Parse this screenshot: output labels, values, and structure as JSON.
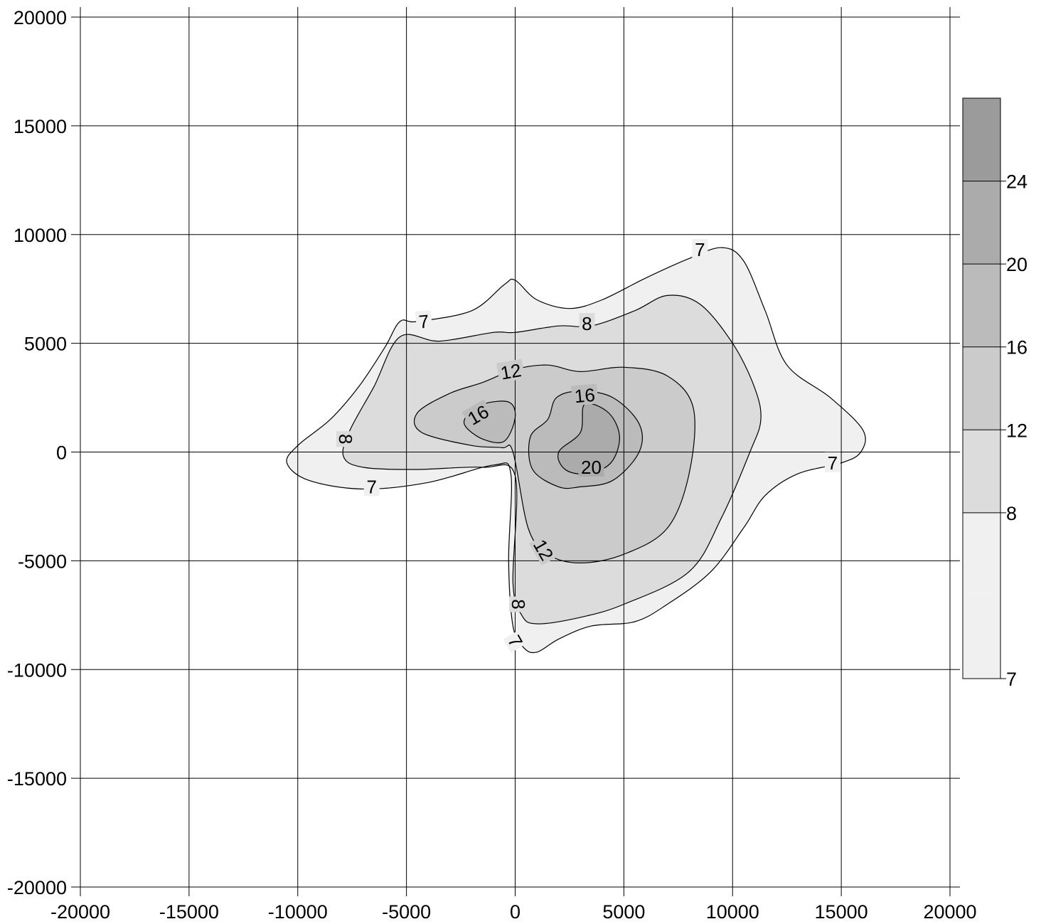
{
  "chart_data": {
    "type": "contour",
    "title": "",
    "xlabel": "",
    "ylabel": "",
    "xlim": [
      -20000,
      20000
    ],
    "ylim": [
      -20000,
      20000
    ],
    "grid": true,
    "legend": "right",
    "x_ticks": [
      "-20000",
      "-15000",
      "-10000",
      "-5000",
      "0",
      "5000",
      "10000",
      "15000",
      "20000"
    ],
    "y_ticks": [
      "20000",
      "15000",
      "10000",
      "5000",
      "0",
      "-5000",
      "-10000",
      "-15000",
      "-20000"
    ],
    "levels": [
      7,
      8,
      12,
      16,
      20,
      24
    ],
    "colorbar": {
      "labels": [
        "24",
        "20",
        "16",
        "12",
        "8",
        "7"
      ],
      "fills": [
        "#9b9b9b",
        "#ababab",
        "#bbbbbb",
        "#cbcbcb",
        "#dcdcdc",
        "#f0f0f0",
        "#f0f0f0"
      ]
    },
    "contours": [
      {
        "level": 7,
        "fill": "#f0f0f0",
        "points": [
          [
            -4500,
            6000
          ],
          [
            -2000,
            6500
          ],
          [
            -500,
            7700
          ],
          [
            0,
            7900
          ],
          [
            1000,
            7000
          ],
          [
            2500,
            6600
          ],
          [
            4000,
            7000
          ],
          [
            6000,
            8000
          ],
          [
            8000,
            8900
          ],
          [
            9500,
            9400
          ],
          [
            10500,
            8800
          ],
          [
            11500,
            6500
          ],
          [
            12500,
            4000
          ],
          [
            14500,
            2500
          ],
          [
            16000,
            1000
          ],
          [
            15900,
            0
          ],
          [
            15000,
            -500
          ],
          [
            13000,
            -1000
          ],
          [
            11500,
            -2000
          ],
          [
            10500,
            -3500
          ],
          [
            9000,
            -5500
          ],
          [
            7000,
            -7000
          ],
          [
            5500,
            -7800
          ],
          [
            3500,
            -8000
          ],
          [
            2000,
            -8600
          ],
          [
            1000,
            -9200
          ],
          [
            400,
            -9000
          ],
          [
            -100,
            -8000
          ],
          [
            -300,
            -5000
          ],
          [
            -200,
            -1000
          ],
          [
            -1000,
            -600
          ],
          [
            -4000,
            -1400
          ],
          [
            -7000,
            -1700
          ],
          [
            -9500,
            -1300
          ],
          [
            -10500,
            -500
          ],
          [
            -10000,
            300
          ],
          [
            -8500,
            1500
          ],
          [
            -7200,
            3000
          ],
          [
            -6000,
            4800
          ],
          [
            -5300,
            6000
          ]
        ],
        "labels": [
          {
            "text": "7",
            "x": -4200,
            "y": 6000,
            "rot": -5
          },
          {
            "text": "7",
            "x": 8500,
            "y": 9300,
            "rot": 0
          },
          {
            "text": "7",
            "x": 14600,
            "y": -500,
            "rot": 0
          },
          {
            "text": "7",
            "x": -6600,
            "y": -1600,
            "rot": 0
          },
          {
            "text": "7",
            "x": 0,
            "y": -8700,
            "rot": 60
          }
        ]
      },
      {
        "level": 8,
        "fill": "#dcdcdc",
        "points": [
          [
            -5300,
            5300
          ],
          [
            -3500,
            5100
          ],
          [
            -1000,
            5500
          ],
          [
            0,
            5500
          ],
          [
            2000,
            5800
          ],
          [
            3500,
            5800
          ],
          [
            5500,
            6500
          ],
          [
            7000,
            7200
          ],
          [
            8500,
            6800
          ],
          [
            10000,
            5000
          ],
          [
            11000,
            3000
          ],
          [
            11300,
            1500
          ],
          [
            10800,
            0
          ],
          [
            9500,
            -3000
          ],
          [
            8000,
            -5500
          ],
          [
            5000,
            -7000
          ],
          [
            3000,
            -7600
          ],
          [
            1000,
            -7900
          ],
          [
            300,
            -7500
          ],
          [
            -100,
            -6000
          ],
          [
            0,
            -1100
          ],
          [
            -1500,
            -700
          ],
          [
            -4500,
            -800
          ],
          [
            -7000,
            -700
          ],
          [
            -7900,
            -200
          ],
          [
            -7600,
            1000
          ],
          [
            -6500,
            3000
          ]
        ],
        "labels": [
          {
            "text": "8",
            "x": 3300,
            "y": 5900,
            "rot": 0
          },
          {
            "text": "8",
            "x": -7800,
            "y": 600,
            "rot": 90
          },
          {
            "text": "8",
            "x": 150,
            "y": -7000,
            "rot": 90
          }
        ]
      },
      {
        "level": 12,
        "fill": "#cbcbcb",
        "points": [
          [
            -4500,
            1800
          ],
          [
            -3000,
            2700
          ],
          [
            -1500,
            3200
          ],
          [
            0,
            3800
          ],
          [
            1500,
            4000
          ],
          [
            3000,
            3700
          ],
          [
            5000,
            3900
          ],
          [
            7000,
            3500
          ],
          [
            8200,
            2000
          ],
          [
            8000,
            -1000
          ],
          [
            7000,
            -3500
          ],
          [
            5000,
            -4700
          ],
          [
            3000,
            -5100
          ],
          [
            1500,
            -4700
          ],
          [
            600,
            -3500
          ],
          [
            -100,
            0
          ],
          [
            -600,
            200
          ],
          [
            -2000,
            300
          ],
          [
            -4300,
            900
          ]
        ],
        "labels": [
          {
            "text": "12",
            "x": -200,
            "y": 3700,
            "rot": -10
          },
          {
            "text": "12",
            "x": 1300,
            "y": -4500,
            "rot": 60
          }
        ]
      },
      {
        "level": 16,
        "fill": "#bbbbbb",
        "points": [
          [
            1900,
            2500
          ],
          [
            3000,
            2800
          ],
          [
            4500,
            2500
          ],
          [
            5700,
            1300
          ],
          [
            5700,
            0
          ],
          [
            4500,
            -1300
          ],
          [
            3000,
            -1600
          ],
          [
            2000,
            -1600
          ],
          [
            800,
            -800
          ],
          [
            700,
            700
          ],
          [
            1500,
            1500
          ]
        ],
        "labels": [
          {
            "text": "16",
            "x": 3200,
            "y": 2600,
            "rot": -5
          }
        ]
      },
      {
        "level": 16,
        "fill": "#bbbbbb",
        "points": [
          [
            -2200,
            1700
          ],
          [
            -1500,
            2200
          ],
          [
            -300,
            2300
          ],
          [
            0,
            1600
          ],
          [
            -500,
            500
          ],
          [
            -1500,
            600
          ],
          [
            -2300,
            1200
          ]
        ],
        "labels": [
          {
            "text": "16",
            "x": -1700,
            "y": 1700,
            "rot": -30
          }
        ]
      },
      {
        "level": 20,
        "fill": "#ababab",
        "points": [
          [
            3200,
            2200
          ],
          [
            4300,
            1800
          ],
          [
            4800,
            700
          ],
          [
            4400,
            -500
          ],
          [
            3300,
            -1000
          ],
          [
            2300,
            -800
          ],
          [
            2000,
            0
          ],
          [
            3000,
            900
          ]
        ],
        "labels": [
          {
            "text": "20",
            "x": 3500,
            "y": -700,
            "rot": 0
          }
        ]
      }
    ]
  }
}
